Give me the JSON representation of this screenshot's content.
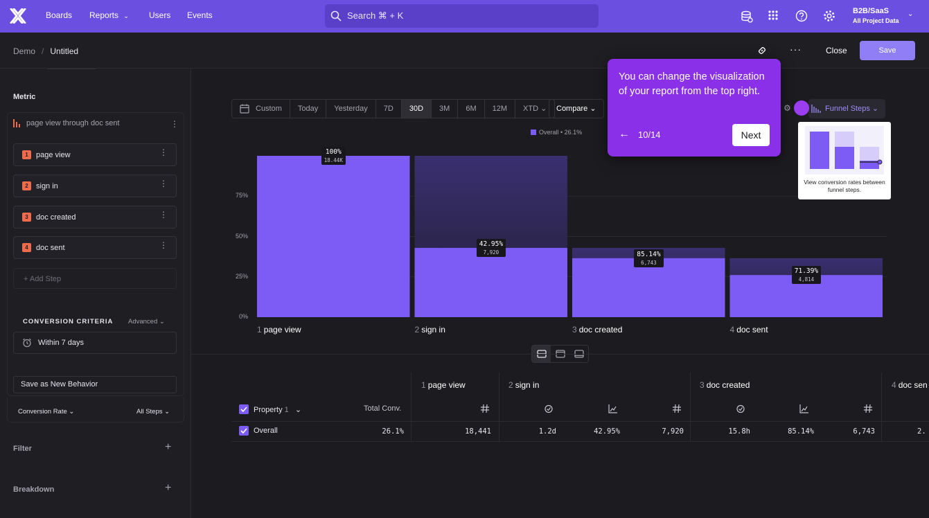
{
  "nav": {
    "boards": "Boards",
    "reports": "Reports",
    "users": "Users",
    "events": "Events",
    "search_placeholder": "Search  ⌘ + K",
    "project_name": "B2B/SaaS",
    "project_sub": "All Project Data"
  },
  "header": {
    "breadcrumb_root": "Demo",
    "breadcrumb_sep": "/",
    "breadcrumb_current": "Untitled",
    "close_label": "Close",
    "save_label": "Save"
  },
  "sidebar": {
    "metric_title": "Metric",
    "metric_name": "page view through doc sent",
    "steps": [
      {
        "num": "1",
        "label": "page view"
      },
      {
        "num": "2",
        "label": "sign in"
      },
      {
        "num": "3",
        "label": "doc created"
      },
      {
        "num": "4",
        "label": "doc sent"
      }
    ],
    "add_step": "+ Add Step",
    "conversion_criteria": "CONVERSION CRITERIA",
    "advanced": "Advanced",
    "within": "Within 7 days",
    "save_behavior": "Save as New Behavior",
    "conversion_rate": "Conversion Rate",
    "all_steps": "All Steps",
    "filter": "Filter",
    "breakdown": "Breakdown"
  },
  "toolbar": {
    "date_options": [
      "Custom",
      "Today",
      "Yesterday",
      "7D",
      "30D",
      "3M",
      "6M",
      "12M",
      "XTD"
    ],
    "active_date": "30D",
    "compare": "Compare",
    "visualization": "Funnel Steps"
  },
  "chart_data": {
    "type": "bar",
    "legend": "Overall • 26.1%",
    "categories": [
      "page view",
      "sign in",
      "doc created",
      "doc sent"
    ],
    "category_numbers": [
      "1",
      "2",
      "3",
      "4"
    ],
    "series": [
      {
        "name": "Overall",
        "values": [
          100,
          42.95,
          36.56,
          26.1
        ],
        "color": "#7c5cf5"
      }
    ],
    "prev_step_values": [
      null,
      100,
      42.95,
      36.56
    ],
    "data_labels": [
      {
        "pct": "100%",
        "count": "18.44K"
      },
      {
        "pct": "42.95%",
        "count": "7,920"
      },
      {
        "pct": "85.14%",
        "count": "6,743"
      },
      {
        "pct": "71.39%",
        "count": "4,814"
      }
    ],
    "yticks": [
      "0%",
      "25%",
      "50%",
      "75%"
    ],
    "ylim": [
      0,
      100
    ]
  },
  "table": {
    "property_header": "Property",
    "property_count": "1",
    "total_conv_header": "Total Conv.",
    "step_headers": [
      {
        "num": "1",
        "label": "page view"
      },
      {
        "num": "2",
        "label": "sign in"
      },
      {
        "num": "3",
        "label": "doc created"
      },
      {
        "num": "4",
        "label": "doc sen"
      }
    ],
    "row": {
      "name": "Overall",
      "total_conv": "26.1%",
      "cells": [
        "18,441",
        "1.2d",
        "42.95%",
        "7,920",
        "15.8h",
        "85.14%",
        "6,743",
        "2."
      ]
    }
  },
  "tour": {
    "text": "You can change the visualization of your report from the top right.",
    "counter": "10/14",
    "next": "Next",
    "card_text": "View conversion rates between funnel steps."
  }
}
